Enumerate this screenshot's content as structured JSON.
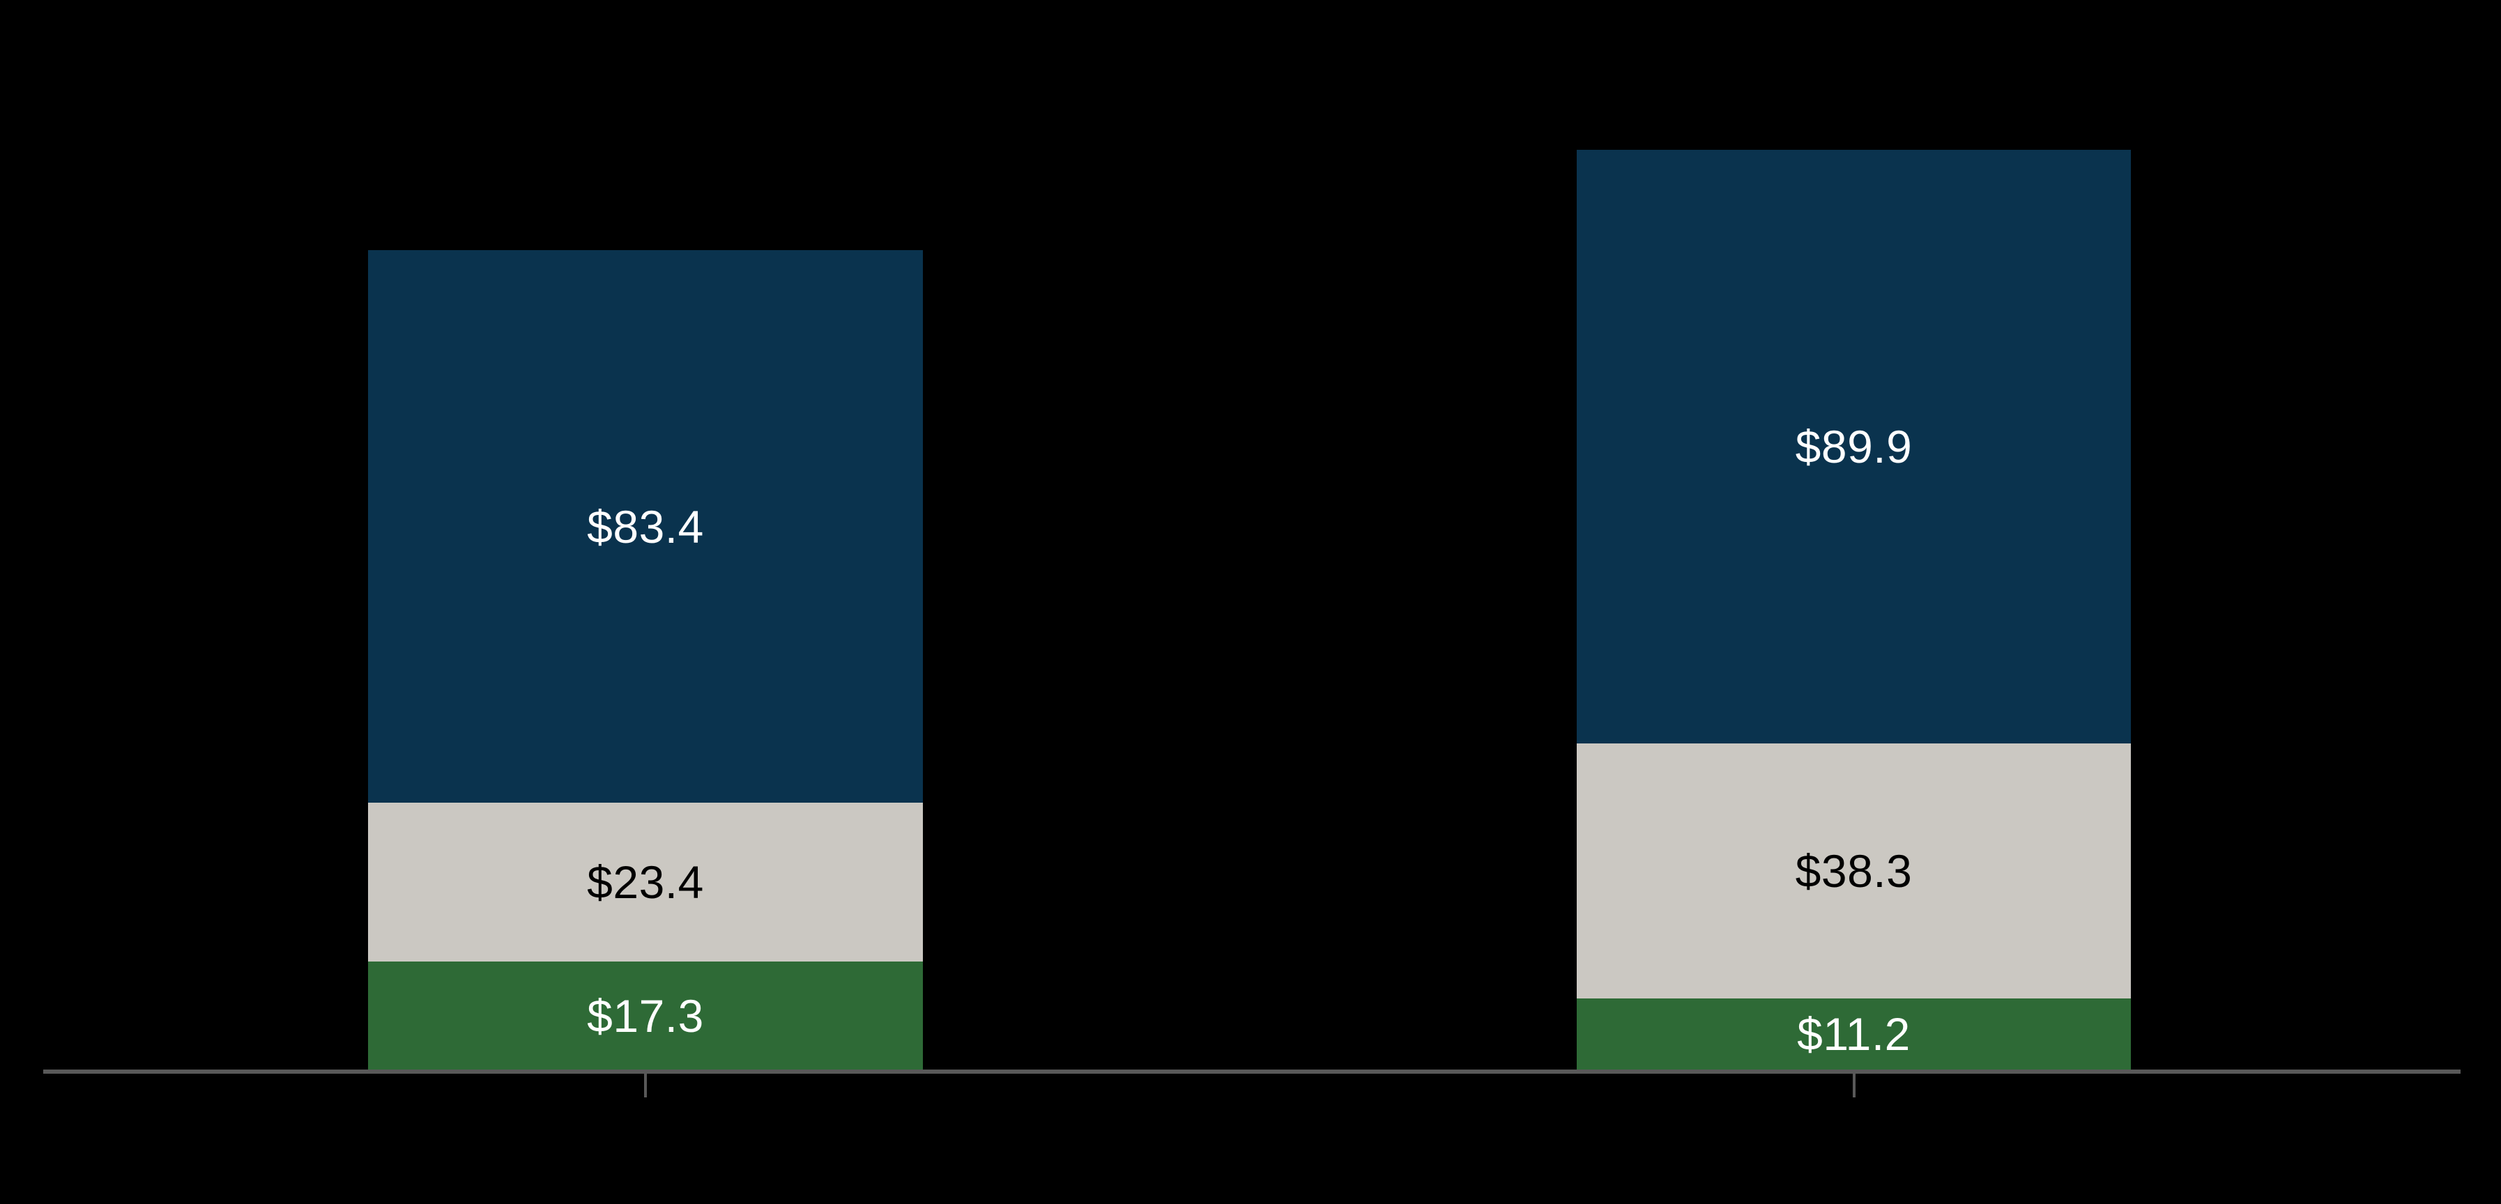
{
  "background_color": "#000000",
  "chart_data": {
    "type": "bar",
    "stacked": true,
    "orientation": "vertical",
    "title": "",
    "xlabel": "",
    "ylabel": "",
    "legend": "none",
    "grid": false,
    "background": "#000000",
    "num_bars": 2,
    "stack_order_top_to_bottom": [
      "navy",
      "gray",
      "green"
    ],
    "series": [
      {
        "name": "top-navy-segment",
        "color": "#0a334e",
        "values": [
          83.4,
          89.9
        ],
        "labels": [
          "$83.4",
          "$89.9"
        ],
        "label_color": "#ffffff"
      },
      {
        "name": "middle-gray-segment",
        "color": "#cbc8c2",
        "values": [
          23.4,
          38.3
        ],
        "labels": [
          "$23.4",
          "$38.3"
        ],
        "label_color": "#000000"
      },
      {
        "name": "bottom-green-segment",
        "color": "#2e6a36",
        "values": [
          17.3,
          11.2
        ],
        "labels": [
          "$17.3",
          "$11.2"
        ],
        "label_color": "#ffffff"
      }
    ],
    "axis": {
      "baseline_color": "#595959",
      "tick_color": "#595959",
      "tick_count": 2,
      "visible_tick_labels": []
    }
  }
}
